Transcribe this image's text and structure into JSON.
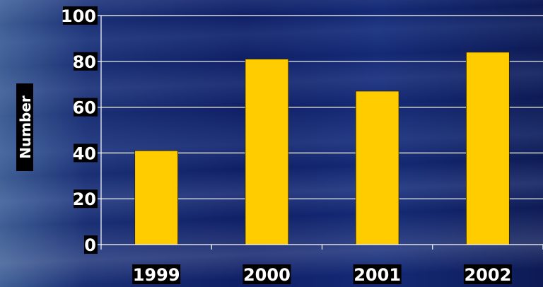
{
  "chart_data": {
    "type": "bar",
    "categories": [
      "1999",
      "2000",
      "2001",
      "2002"
    ],
    "values": [
      41,
      81,
      67,
      84
    ],
    "title": "",
    "xlabel": "",
    "ylabel": "Number",
    "ylim": [
      0,
      100
    ],
    "yticks": [
      "0",
      "20",
      "40",
      "60",
      "80",
      "100"
    ],
    "grid": true,
    "bar_color": "#FFCC00",
    "gridline_color": "#FFFFFF"
  }
}
